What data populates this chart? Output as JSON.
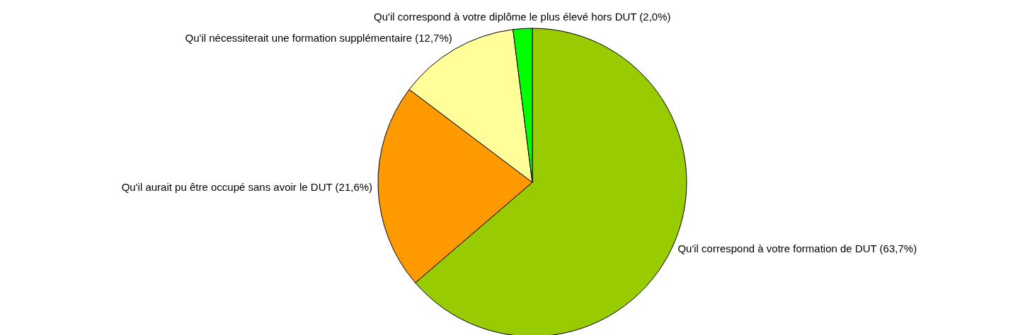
{
  "chart_data": {
    "type": "pie",
    "categories": [
      "Qu'il correspond à votre formation de DUT",
      "Qu'il aurait pu être occupé sans avoir le DUT",
      "Qu'il nécessiterait une formation supplémentaire",
      "Qu'il correspond à votre diplôme le plus élevé hors DUT"
    ],
    "values": [
      63.7,
      21.6,
      12.7,
      2.0
    ],
    "value_labels": [
      "(63,7%)",
      "(21,6%)",
      "(12,7%)",
      "(2,0%)"
    ],
    "colors": [
      "#99cc00",
      "#ff9900",
      "#ffff99",
      "#00ff00"
    ]
  }
}
